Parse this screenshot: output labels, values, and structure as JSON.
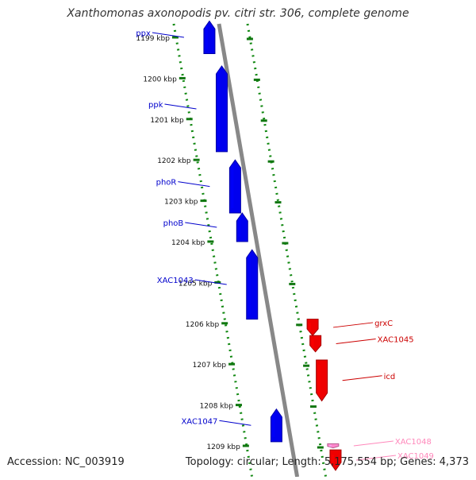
{
  "title": "Xanthomonas axonopodis pv. citri str. 306, complete genome",
  "accession": "Accession: NC_003919",
  "topology": "Topology: circular; Length: 5,175,554 bp; Genes: 4,373",
  "ticks": [
    {
      "kbp": 1199,
      "label": "1199 kbp"
    },
    {
      "kbp": 1200,
      "label": "1200 kbp"
    },
    {
      "kbp": 1201,
      "label": "1201 kbp"
    },
    {
      "kbp": 1202,
      "label": "1202 kbp"
    },
    {
      "kbp": 1203,
      "label": "1203 kbp"
    },
    {
      "kbp": 1204,
      "label": "1204 kbp"
    },
    {
      "kbp": 1205,
      "label": "1205 kbp"
    },
    {
      "kbp": 1206,
      "label": "1206 kbp"
    },
    {
      "kbp": 1207,
      "label": "1207 kbp"
    },
    {
      "kbp": 1208,
      "label": "1208 kbp"
    },
    {
      "kbp": 1209,
      "label": "1209 kbp"
    }
  ],
  "genes": [
    {
      "name": "ppx",
      "start": 1198.6,
      "end": 1199.4,
      "strand": "-",
      "color": "#0000ee"
    },
    {
      "name": "ppk",
      "start": 1199.7,
      "end": 1201.8,
      "strand": "-",
      "color": "#0000ee"
    },
    {
      "name": "phoR",
      "start": 1202.0,
      "end": 1203.3,
      "strand": "-",
      "color": "#0000ee"
    },
    {
      "name": "phoB",
      "start": 1203.3,
      "end": 1204.0,
      "strand": "-",
      "color": "#0000ee"
    },
    {
      "name": "XAC1043",
      "start": 1204.2,
      "end": 1205.9,
      "strand": "-",
      "color": "#0000ee"
    },
    {
      "name": "grxC",
      "start": 1205.9,
      "end": 1206.3,
      "strand": "+",
      "color": "#ee0000"
    },
    {
      "name": "XAC1045",
      "start": 1206.3,
      "end": 1206.7,
      "strand": "+",
      "color": "#ee0000"
    },
    {
      "name": "icd",
      "start": 1206.9,
      "end": 1207.9,
      "strand": "+",
      "color": "#ee0000"
    },
    {
      "name": "XAC1047",
      "start": 1208.1,
      "end": 1208.9,
      "strand": "-",
      "color": "#0000ee"
    },
    {
      "name": "XAC1048",
      "start": 1208.95,
      "end": 1209.05,
      "strand": "+",
      "color": "#ff88cc"
    },
    {
      "name": "XAC1049",
      "start": 1209.1,
      "end": 1209.6,
      "strand": "+",
      "color": "#ee0000"
    }
  ],
  "labels": [
    {
      "text": "ppx",
      "gene": "ppx",
      "strand": "-",
      "color": "#0000cc"
    },
    {
      "text": "ppk",
      "gene": "ppk",
      "strand": "-",
      "color": "#0000cc"
    },
    {
      "text": "phoR",
      "gene": "phoR",
      "strand": "-",
      "color": "#0000cc"
    },
    {
      "text": "phoB",
      "gene": "phoB",
      "strand": "-",
      "color": "#0000cc"
    },
    {
      "text": "XAC1043",
      "gene": "XAC1043",
      "strand": "-",
      "color": "#0000cc"
    },
    {
      "text": "grxC",
      "gene": "grxC",
      "strand": "+",
      "color": "#cc0000"
    },
    {
      "text": "XAC1045",
      "gene": "XAC1045",
      "strand": "+",
      "color": "#cc0000"
    },
    {
      "text": "icd",
      "gene": "icd",
      "strand": "+",
      "color": "#cc0000"
    },
    {
      "text": "XAC1047",
      "gene": "XAC1047",
      "strand": "-",
      "color": "#0000cc"
    },
    {
      "text": "XAC1048",
      "gene": "XAC1048",
      "strand": "+",
      "color": "#ff88bb"
    },
    {
      "text": "XAC1049",
      "gene": "XAC1049",
      "strand": "+",
      "color": "#ff88bb"
    }
  ],
  "colors": {
    "backbone": "#888888",
    "tick": "#117711",
    "dots": "#118811"
  }
}
